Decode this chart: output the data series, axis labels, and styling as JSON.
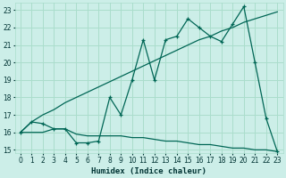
{
  "xlabel": "Humidex (Indice chaleur)",
  "bg_color": "#cceee8",
  "grid_color": "#aaddcc",
  "line_color": "#006655",
  "xlim": [
    -0.5,
    23.5
  ],
  "ylim": [
    14.8,
    23.4
  ],
  "yticks": [
    15,
    16,
    17,
    18,
    19,
    20,
    21,
    22,
    23
  ],
  "xticks": [
    0,
    1,
    2,
    3,
    4,
    5,
    6,
    7,
    8,
    9,
    10,
    11,
    12,
    13,
    14,
    15,
    16,
    17,
    18,
    19,
    20,
    21,
    22,
    23
  ],
  "line1_x": [
    0,
    1,
    2,
    3,
    4,
    5,
    6,
    7,
    8,
    9,
    10,
    11,
    12,
    13,
    14,
    15,
    16,
    17,
    18,
    19,
    20,
    21,
    22,
    23
  ],
  "line1_y": [
    16.0,
    16.6,
    16.5,
    16.2,
    16.2,
    15.4,
    15.4,
    15.5,
    18.0,
    17.0,
    19.0,
    21.3,
    19.0,
    21.3,
    21.5,
    22.5,
    22.0,
    21.5,
    21.2,
    22.2,
    23.2,
    20.0,
    16.8,
    14.9
  ],
  "line2_x": [
    0,
    1,
    2,
    3,
    4,
    5,
    6,
    7,
    8,
    9,
    10,
    11,
    12,
    13,
    14,
    15,
    16,
    17,
    18,
    19,
    20,
    21,
    22,
    23
  ],
  "line2_y": [
    16.0,
    16.6,
    17.0,
    17.3,
    17.7,
    18.0,
    18.3,
    18.6,
    18.9,
    19.2,
    19.5,
    19.8,
    20.1,
    20.4,
    20.7,
    21.0,
    21.3,
    21.5,
    21.8,
    22.0,
    22.3,
    22.5,
    22.7,
    22.9
  ],
  "line3_x": [
    0,
    1,
    2,
    3,
    4,
    5,
    6,
    7,
    8,
    9,
    10,
    11,
    12,
    13,
    14,
    15,
    16,
    17,
    18,
    19,
    20,
    21,
    22,
    23
  ],
  "line3_y": [
    16.0,
    16.0,
    16.0,
    16.2,
    16.2,
    15.9,
    15.8,
    15.8,
    15.8,
    15.8,
    15.7,
    15.7,
    15.6,
    15.5,
    15.5,
    15.4,
    15.3,
    15.3,
    15.2,
    15.1,
    15.1,
    15.0,
    15.0,
    14.9
  ]
}
